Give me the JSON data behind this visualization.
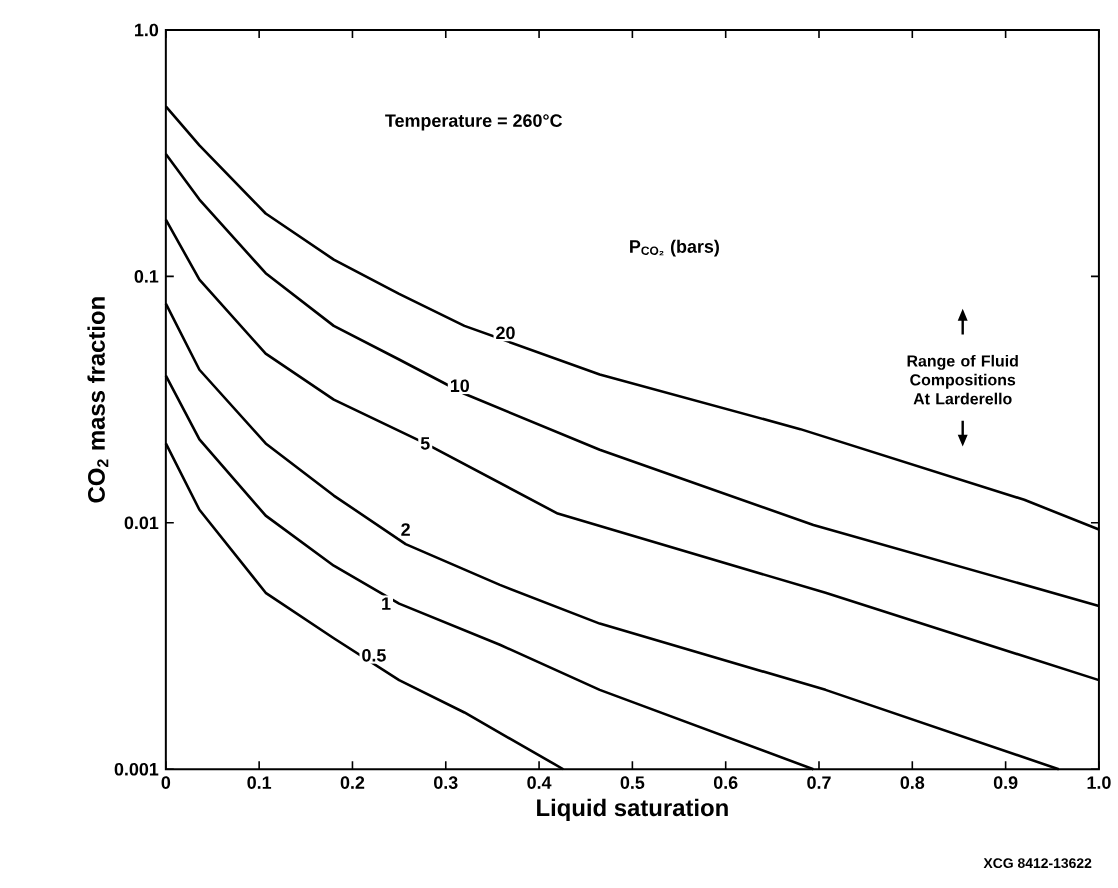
{
  "chart_data": {
    "type": "line",
    "xlabel": "Liquid saturation",
    "ylabel": "CO$_{2}$ mass fraction",
    "log": "y",
    "grid": false,
    "marker": "none",
    "line_style": "solid",
    "xlim": [
      0,
      1
    ],
    "ylim": [
      0.001,
      1
    ],
    "xticks": [
      0,
      0.1,
      0.2,
      0.3,
      0.4,
      0.5,
      0.6,
      0.7,
      0.8,
      0.9,
      {
        "value": 1,
        "label": "1.0"
      }
    ],
    "yticks": [
      0.001,
      0.01,
      0.1,
      {
        "value": 1,
        "label": "1.0"
      }
    ],
    "series": [
      {
        "color": "#000000",
        "x": [
          0,
          0.036,
          0.107,
          0.18,
          0.25,
          0.32,
          0.465,
          0.68,
          0.92,
          1.0
        ],
        "values": [
          0.49,
          0.34,
          0.18,
          0.117,
          0.085,
          0.063,
          0.04,
          0.024,
          0.0124,
          0.0094
        ]
      },
      {
        "color": "#000000",
        "x": [
          0,
          0.036,
          0.107,
          0.18,
          0.25,
          0.32,
          0.465,
          0.694,
          1.0
        ],
        "values": [
          0.314,
          0.205,
          0.103,
          0.063,
          0.046,
          0.0334,
          0.0198,
          0.0098,
          0.0046
        ]
      },
      {
        "color": "#000000",
        "x": [
          0,
          0.036,
          0.107,
          0.18,
          0.278,
          0.42,
          0.707,
          1.0
        ],
        "values": [
          0.17,
          0.097,
          0.0486,
          0.0316,
          0.021,
          0.0109,
          0.0052,
          0.0023
        ]
      },
      {
        "color": "#000000",
        "x": [
          0,
          0.036,
          0.107,
          0.18,
          0.257,
          0.358,
          0.465,
          0.707,
          0.957
        ],
        "values": [
          0.0775,
          0.0418,
          0.021,
          0.0129,
          0.0082,
          0.0056,
          0.0039,
          0.0021,
          0.001
        ]
      },
      {
        "color": "#000000",
        "x": [
          0,
          0.036,
          0.107,
          0.18,
          0.25,
          0.358,
          0.465,
          0.694
        ],
        "values": [
          0.0396,
          0.0218,
          0.0107,
          0.0067,
          0.0047,
          0.0032,
          0.0021,
          0.001
        ]
      },
      {
        "color": "#000000",
        "x": [
          0,
          0.036,
          0.107,
          0.18,
          0.25,
          0.32,
          0.426
        ],
        "values": [
          0.021,
          0.0113,
          0.0052,
          0.0034,
          0.0023,
          0.0017,
          0.001
        ]
      }
    ],
    "annotations": [
      "Temperature = 260°C",
      "P$_{CO₂}$ (bars)",
      {
        "text": "20",
        "x": 0.364,
        "y": 0.059
      },
      {
        "text": "10",
        "x": 0.315,
        "y": 0.036
      },
      {
        "text": "5",
        "x": 0.278,
        "y": 0.021
      },
      {
        "text": "2",
        "x": 0.257,
        "y": 0.0094
      },
      {
        "text": "1",
        "x": 0.236,
        "y": 0.0047
      },
      {
        "text": "0.5",
        "x": 0.223,
        "y": 0.0029
      },
      "Range of Fluid Compositions At Larderello",
      "XCG 8412-13622"
    ]
  }
}
